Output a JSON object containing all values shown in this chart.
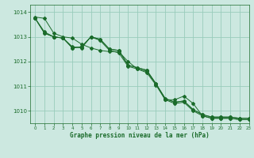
{
  "title": "Graphe pression niveau de la mer (hPa)",
  "xlim": [
    -0.5,
    23
  ],
  "ylim": [
    1009.5,
    1014.3
  ],
  "yticks": [
    1010,
    1011,
    1012,
    1013,
    1014
  ],
  "xticks": [
    0,
    1,
    2,
    3,
    4,
    5,
    6,
    7,
    8,
    9,
    10,
    11,
    12,
    13,
    14,
    15,
    16,
    17,
    18,
    19,
    20,
    21,
    22,
    23
  ],
  "bg_color": "#cce8e0",
  "grid_color": "#99ccbb",
  "line_color": "#1a6b2a",
  "series": [
    [
      1013.8,
      1013.75,
      1013.15,
      1013.0,
      1012.95,
      1012.7,
      1012.55,
      1012.45,
      1012.4,
      1012.4,
      1012.0,
      1011.7,
      1011.55,
      1011.05,
      1010.45,
      1010.45,
      1010.6,
      1010.3,
      1009.8,
      1009.7,
      1009.7,
      1009.7,
      1009.65,
      1009.65
    ],
    [
      1013.75,
      1013.2,
      1013.0,
      1012.95,
      1012.6,
      1012.55,
      1013.0,
      1012.85,
      1012.45,
      1012.35,
      1011.8,
      1011.7,
      1011.6,
      1011.1,
      1010.45,
      1010.3,
      1010.35,
      1010.0,
      1009.8,
      1009.7,
      1009.7,
      1009.7,
      1009.65,
      1009.65
    ],
    [
      1013.75,
      1013.15,
      1013.0,
      1012.95,
      1012.55,
      1012.6,
      1013.0,
      1012.9,
      1012.5,
      1012.45,
      1011.85,
      1011.75,
      1011.65,
      1011.1,
      1010.5,
      1010.35,
      1010.4,
      1010.05,
      1009.85,
      1009.75,
      1009.75,
      1009.75,
      1009.7,
      1009.7
    ],
    [
      1013.75,
      1013.15,
      1013.0,
      1012.95,
      1012.55,
      1012.6,
      1013.0,
      1012.9,
      1012.5,
      1012.45,
      1011.85,
      1011.75,
      1011.65,
      1011.1,
      1010.5,
      1010.35,
      1010.4,
      1010.05,
      1009.85,
      1009.75,
      1009.75,
      1009.75,
      1009.7,
      1009.7
    ]
  ]
}
